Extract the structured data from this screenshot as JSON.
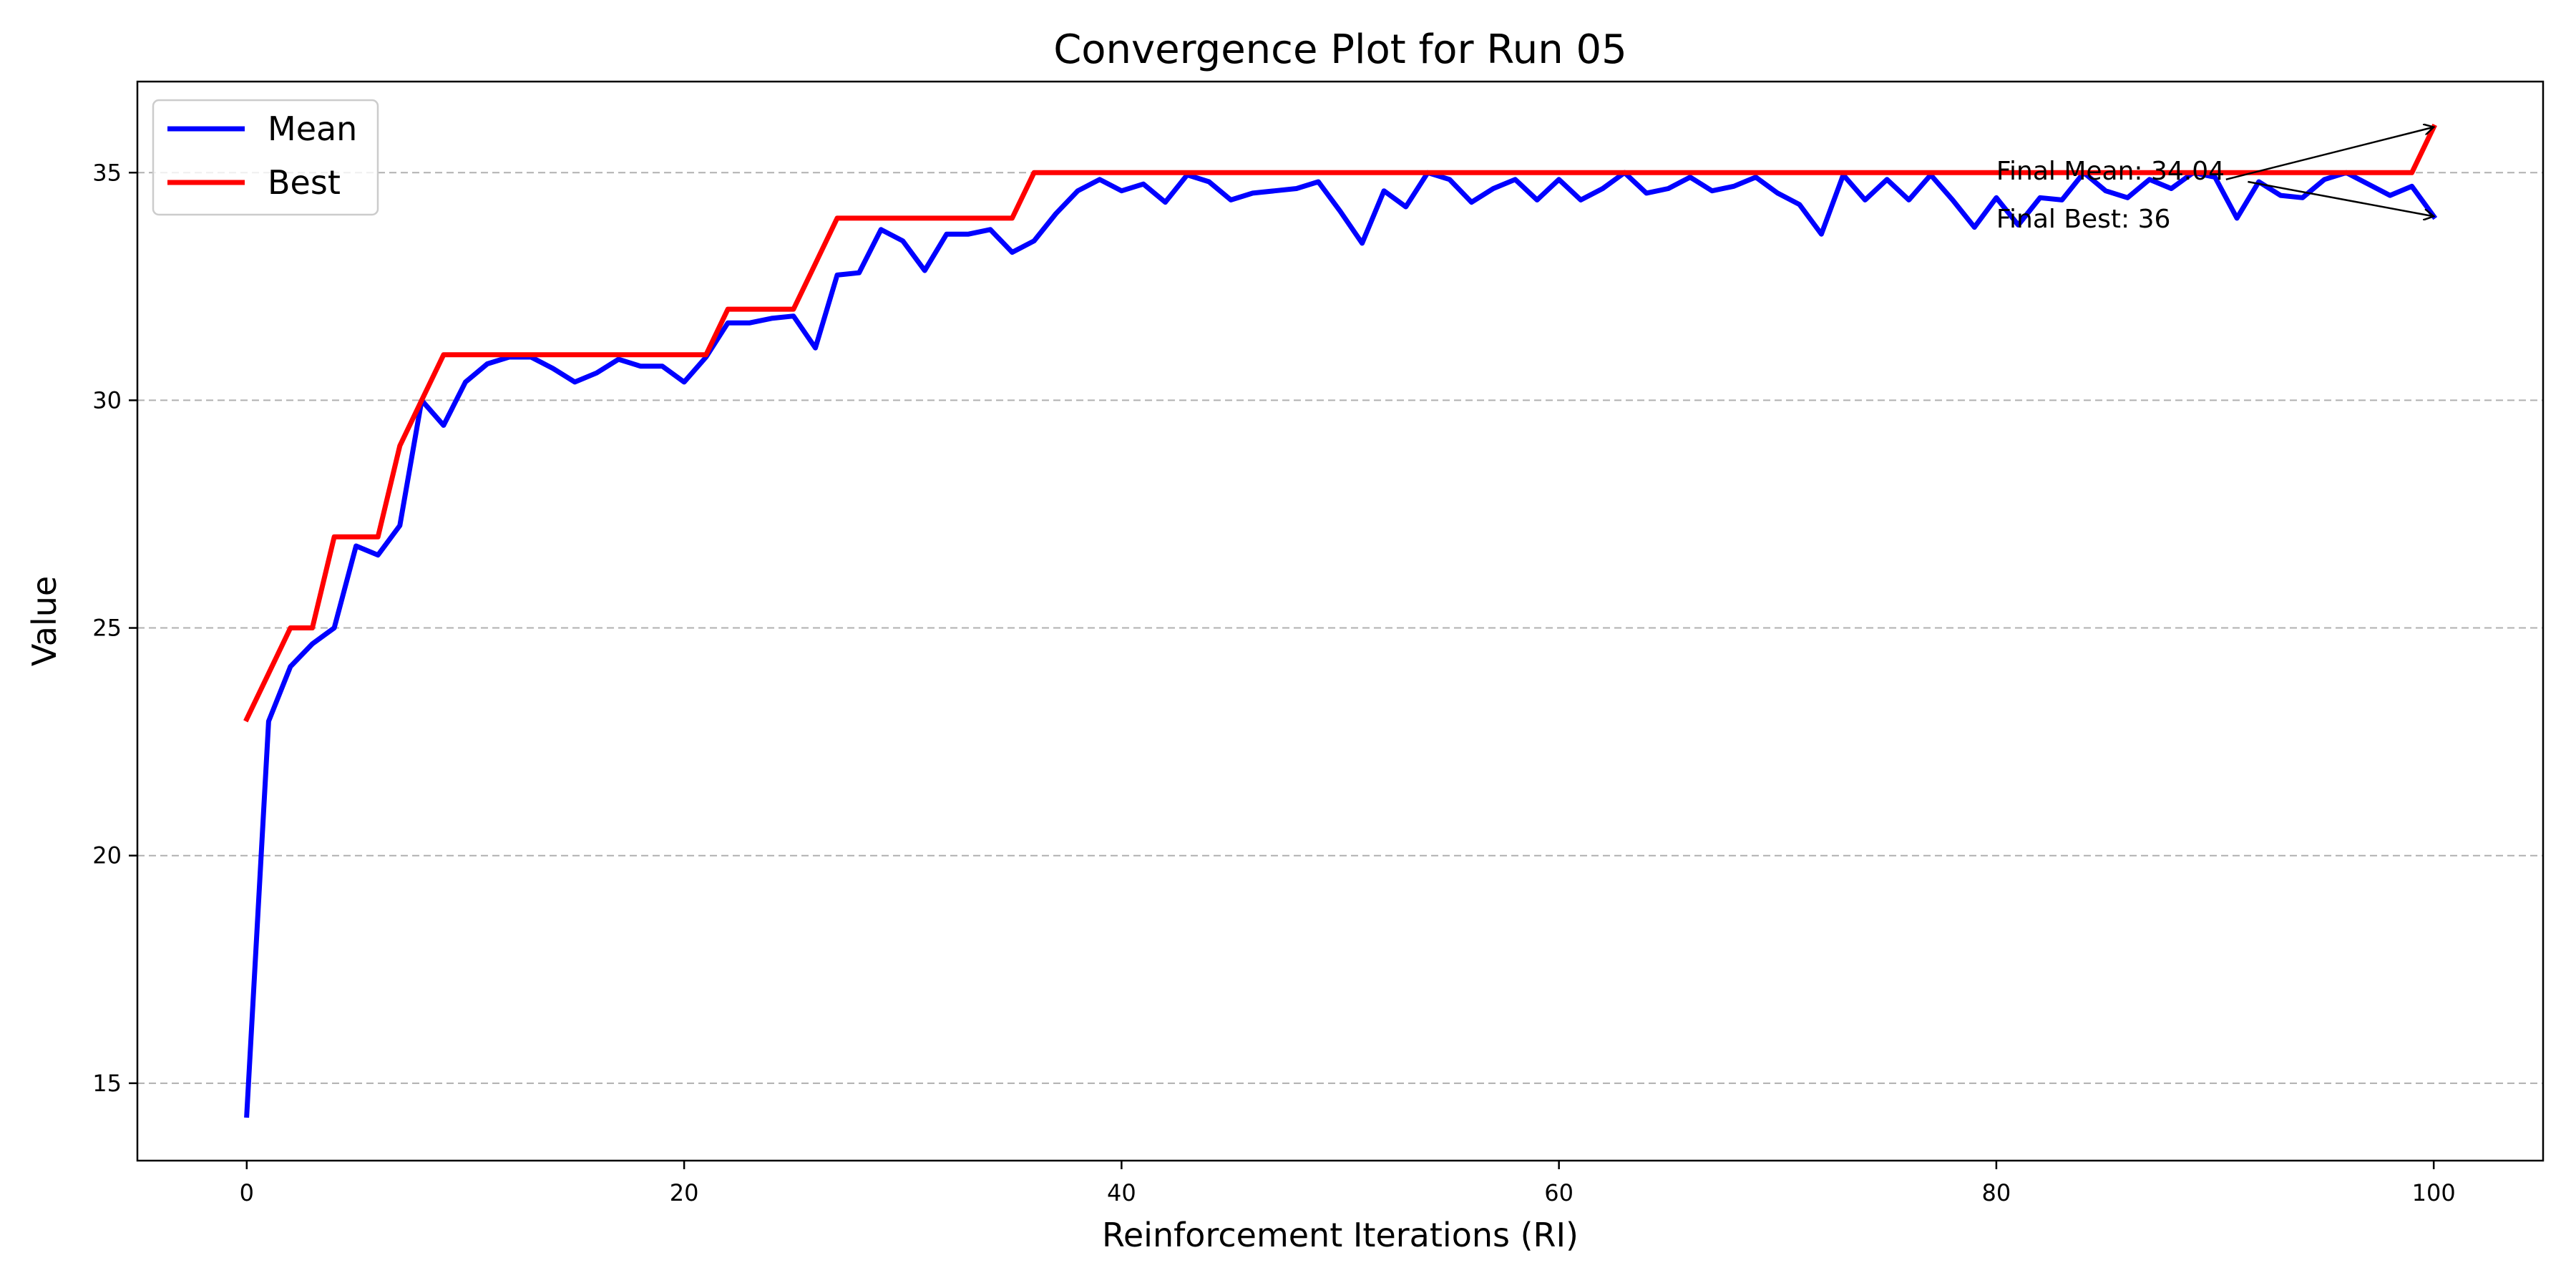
{
  "chart_data": {
    "type": "line",
    "title": "Convergence Plot for Run 05",
    "xlabel": "Reinforcement Iterations (RI)",
    "ylabel": "Value",
    "xlim": [
      -5,
      105
    ],
    "ylim": [
      13.3,
      37.0
    ],
    "xticks": [
      0,
      20,
      40,
      60,
      80,
      100
    ],
    "yticks": [
      15,
      20,
      25,
      30,
      35
    ],
    "grid": "y-dashed",
    "legend_position": "top-left",
    "x": [
      0,
      1,
      2,
      3,
      4,
      5,
      6,
      7,
      8,
      9,
      10,
      11,
      12,
      13,
      14,
      15,
      16,
      17,
      18,
      19,
      20,
      21,
      22,
      23,
      24,
      25,
      26,
      27,
      28,
      29,
      30,
      31,
      32,
      33,
      34,
      35,
      36,
      37,
      38,
      39,
      40,
      41,
      42,
      43,
      44,
      45,
      46,
      47,
      48,
      49,
      50,
      51,
      52,
      53,
      54,
      55,
      56,
      57,
      58,
      59,
      60,
      61,
      62,
      63,
      64,
      65,
      66,
      67,
      68,
      69,
      70,
      71,
      72,
      73,
      74,
      75,
      76,
      77,
      78,
      79,
      80,
      81,
      82,
      83,
      84,
      85,
      86,
      87,
      88,
      89,
      90,
      91,
      92,
      93,
      94,
      95,
      96,
      97,
      98,
      99,
      100
    ],
    "series": [
      {
        "name": "Mean",
        "color": "#0000ff",
        "values": [
          14.3,
          22.95,
          24.15,
          24.65,
          25.0,
          26.8,
          26.6,
          27.25,
          30.0,
          29.45,
          30.4,
          30.8,
          30.95,
          30.95,
          30.7,
          30.4,
          30.6,
          30.9,
          30.75,
          30.75,
          30.4,
          30.95,
          31.7,
          31.7,
          31.8,
          31.85,
          31.15,
          32.75,
          32.8,
          33.75,
          33.5,
          32.85,
          33.65,
          33.65,
          33.75,
          33.25,
          33.5,
          34.1,
          34.6,
          34.85,
          34.6,
          34.75,
          34.35,
          34.95,
          34.8,
          34.4,
          34.55,
          34.6,
          34.65,
          34.8,
          34.15,
          33.45,
          34.6,
          34.25,
          35.0,
          34.85,
          34.35,
          34.65,
          34.85,
          34.4,
          34.85,
          34.4,
          34.65,
          35.0,
          34.55,
          34.65,
          34.9,
          34.6,
          34.7,
          34.9,
          34.55,
          34.3,
          33.65,
          34.95,
          34.4,
          34.85,
          34.4,
          34.95,
          34.4,
          33.8,
          34.45,
          33.85,
          34.45,
          34.4,
          35.0,
          34.6,
          34.45,
          34.85,
          34.65,
          35.0,
          34.9,
          34.0,
          34.8,
          34.5,
          34.45,
          34.85,
          35.0,
          34.75,
          34.5,
          34.7,
          34.04
        ]
      },
      {
        "name": "Best",
        "color": "#ff0000",
        "values": [
          23,
          24,
          25,
          25,
          27,
          27,
          27,
          29,
          30,
          31,
          31,
          31,
          31,
          31,
          31,
          31,
          31,
          31,
          31,
          31,
          31,
          31,
          32,
          32,
          32,
          32,
          33,
          34,
          34,
          34,
          34,
          34,
          34,
          34,
          34,
          34,
          35,
          35,
          35,
          35,
          35,
          35,
          35,
          35,
          35,
          35,
          35,
          35,
          35,
          35,
          35,
          35,
          35,
          35,
          35,
          35,
          35,
          35,
          35,
          35,
          35,
          35,
          35,
          35,
          35,
          35,
          35,
          35,
          35,
          35,
          35,
          35,
          35,
          35,
          35,
          35,
          35,
          35,
          35,
          35,
          35,
          35,
          35,
          35,
          35,
          35,
          35,
          35,
          35,
          35,
          35,
          35,
          35,
          35,
          35,
          35,
          35,
          35,
          35,
          35,
          36
        ]
      }
    ],
    "annotations": [
      {
        "text": "Final Mean: 34.04",
        "text_x": 80,
        "text_y": 35.05,
        "target_x": 100,
        "target_y": 36,
        "start_x": 90.5,
        "start_y": 34.85
      },
      {
        "text": "Final Best: 36",
        "text_x": 80,
        "text_y": 34.0,
        "target_x": 100,
        "target_y": 34.04,
        "start_x": 91.5,
        "start_y": 34.8
      }
    ]
  }
}
